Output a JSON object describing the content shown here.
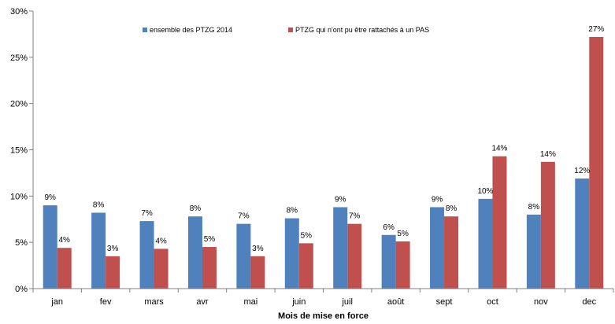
{
  "chart_data": {
    "type": "bar",
    "title": "",
    "xlabel": "Mois de mise en force",
    "ylabel": "",
    "ylim": [
      0,
      30
    ],
    "yticks": [
      "0%",
      "5%",
      "10%",
      "15%",
      "20%",
      "25%",
      "30%"
    ],
    "grid": false,
    "legend_position": "top",
    "categories": [
      "jan",
      "fev",
      "mars",
      "avr",
      "mai",
      "juin",
      "juil",
      "août",
      "sept",
      "oct",
      "nov",
      "dec"
    ],
    "series": [
      {
        "name": "ensemble des PTZG 2014",
        "color": "#4F81BD",
        "values": [
          9.0,
          8.2,
          7.3,
          7.8,
          7.0,
          7.6,
          8.8,
          5.8,
          8.8,
          9.7,
          8.0,
          11.9
        ],
        "labels": [
          "9%",
          "8%",
          "7%",
          "8%",
          "7%",
          "8%",
          "9%",
          "6%",
          "9%",
          "10%",
          "8%",
          "12%"
        ]
      },
      {
        "name": "PTZG qui n'ont pu être  rattachés à un  PAS",
        "color": "#C0504D",
        "values": [
          4.4,
          3.5,
          4.3,
          4.5,
          3.5,
          4.9,
          7.0,
          5.1,
          7.8,
          14.3,
          13.7,
          27.2
        ],
        "labels": [
          "4%",
          "3%",
          "4%",
          "5%",
          "3%",
          "5%",
          "7%",
          "5%",
          "8%",
          "14%",
          "14%",
          "27%"
        ]
      }
    ]
  }
}
